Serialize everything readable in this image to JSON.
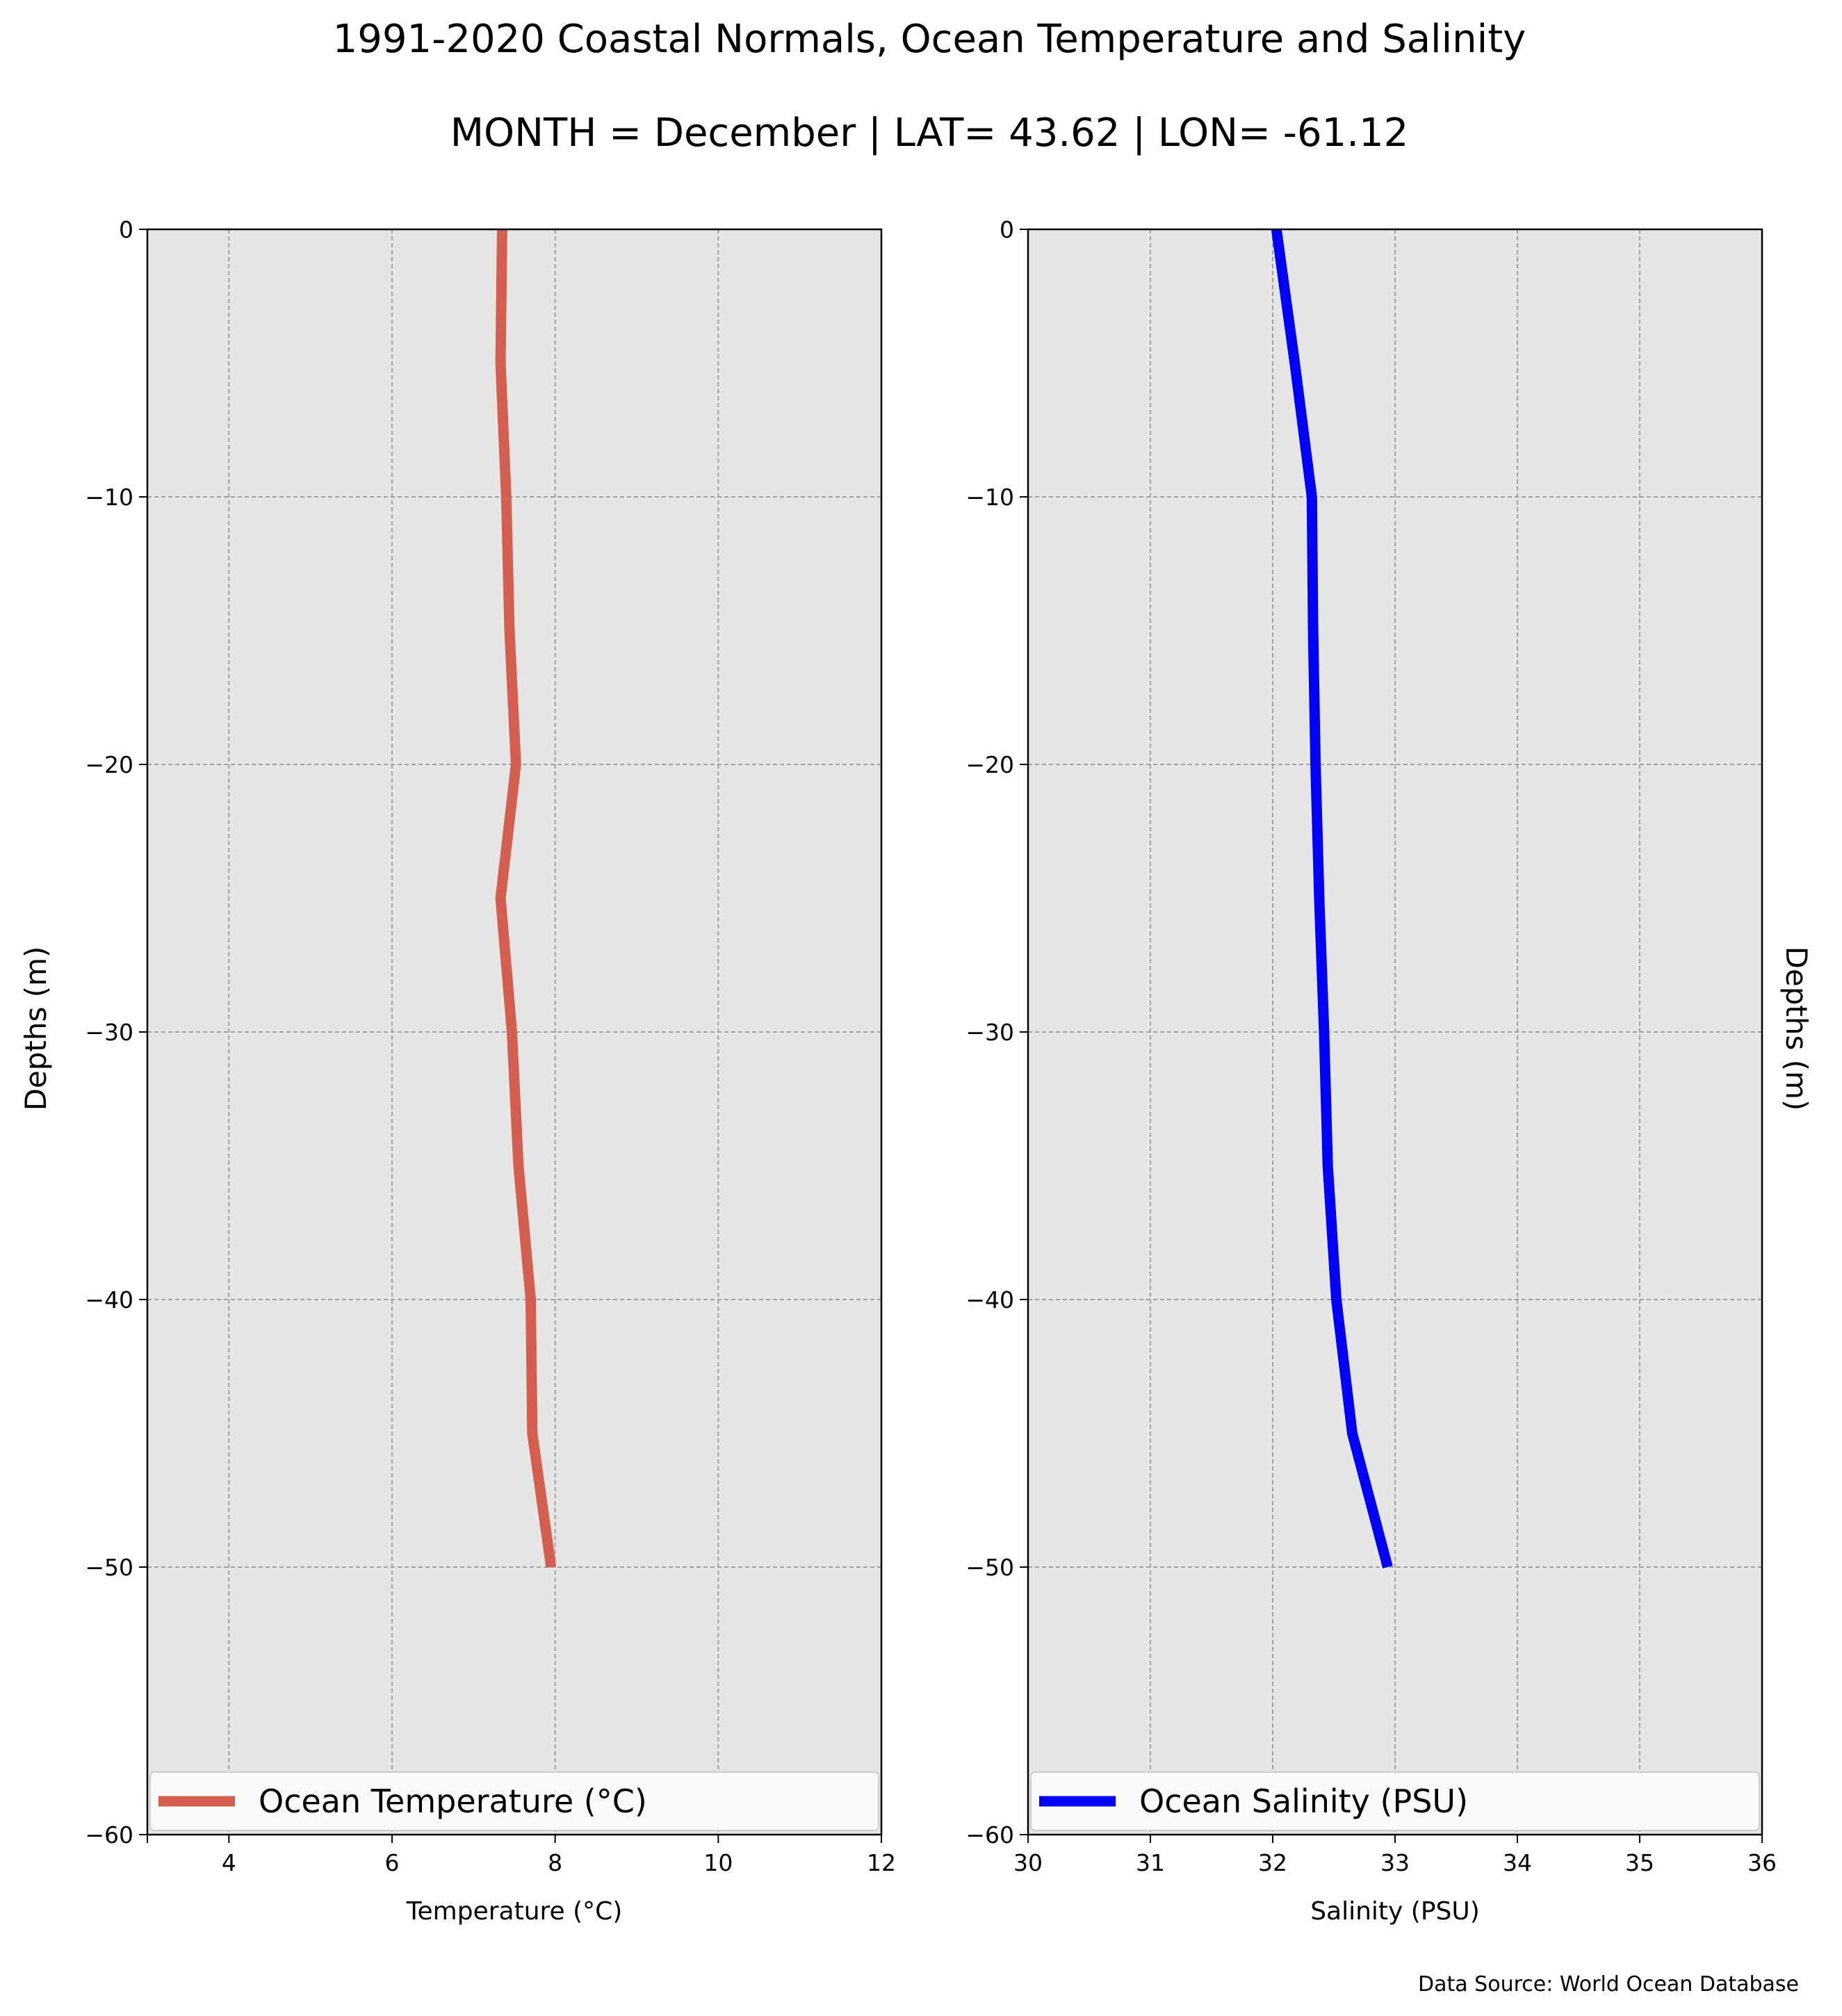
{
  "title": "1991-2020 Coastal Normals, Ocean Temperature and Salinity",
  "subtitle": "MONTH = December | LAT= 43.62 | LON= -61.12",
  "footer": "Data Source: World Ocean Database",
  "colors": {
    "temperature_line": "#d45f4f",
    "salinity_line": "#0000ff",
    "plot_background": "#e6e6e6",
    "grid": "#a0a0a0"
  },
  "chart_data": [
    {
      "type": "line",
      "xlabel": "Temperature ($^\\circ$C)",
      "xlabel_display": "Temperature (°C)",
      "ylabel": "Depths (m)",
      "xlim": [
        3,
        12
      ],
      "ylim": [
        -60,
        0
      ],
      "xticks": [
        4,
        6,
        8,
        10,
        12
      ],
      "xtick_labels": [
        "4",
        "6",
        "8",
        "10",
        "12"
      ],
      "yticks": [
        0,
        -10,
        -20,
        -30,
        -40,
        -50,
        -60
      ],
      "ytick_labels": [
        "0",
        "−10",
        "−20",
        "−30",
        "−40",
        "−50",
        "−60"
      ],
      "grid": true,
      "legend_position": "lower center",
      "series": [
        {
          "name": "Ocean Temperature (°C)",
          "x": [
            7.35,
            7.33,
            7.4,
            7.44,
            7.52,
            7.33,
            7.47,
            7.55,
            7.7,
            7.72,
            7.95
          ],
          "y": [
            0,
            -5,
            -10,
            -15,
            -20,
            -25,
            -30,
            -35,
            -40,
            -45,
            -50
          ]
        }
      ]
    },
    {
      "type": "line",
      "xlabel": "Salinity (PSU)",
      "ylabel": "Depths (m)",
      "xlim": [
        30,
        36
      ],
      "ylim": [
        -60,
        0
      ],
      "xticks": [
        30,
        31,
        32,
        33,
        34,
        35,
        36
      ],
      "xtick_labels": [
        "30",
        "31",
        "32",
        "33",
        "34",
        "35",
        "36"
      ],
      "yticks": [
        0,
        -10,
        -20,
        -30,
        -40,
        -50,
        -60
      ],
      "ytick_labels": [
        "0",
        "−10",
        "−20",
        "−30",
        "−40",
        "−50",
        "−60"
      ],
      "grid": true,
      "legend_position": "lower center",
      "series": [
        {
          "name": "Ocean Salinity (PSU)",
          "x": [
            32.03,
            32.18,
            32.32,
            32.33,
            32.35,
            32.38,
            32.42,
            32.45,
            32.52,
            32.65,
            32.94
          ],
          "y": [
            0,
            -5,
            -10,
            -15,
            -20,
            -25,
            -30,
            -35,
            -40,
            -45,
            -50
          ]
        }
      ]
    }
  ]
}
